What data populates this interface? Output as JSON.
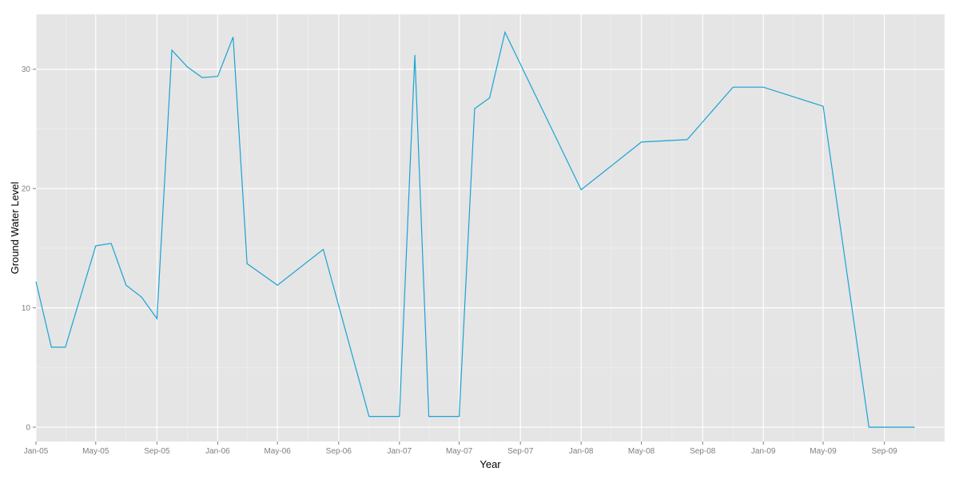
{
  "colors": {
    "panel_background": "#e5e5e5",
    "major_grid": "#ffffff",
    "minor_grid": "#f0f0f0",
    "series_line": "#1aa3d4",
    "tick_text": "#7f7f7f",
    "tick_mark": "#7f7f7f"
  },
  "chart_data": {
    "type": "line",
    "title": "",
    "xlabel": "Year",
    "ylabel": "Ground Water Level",
    "grid": true,
    "legend": "none",
    "xlim": [
      "2005-01-01",
      "2009-12-31"
    ],
    "ylim": [
      -1.2,
      34.6
    ],
    "x_ticks": [
      {
        "date": "2005-01-01",
        "label": "Jan-05"
      },
      {
        "date": "2005-05-01",
        "label": "May-05"
      },
      {
        "date": "2005-09-01",
        "label": "Sep-05"
      },
      {
        "date": "2006-01-01",
        "label": "Jan-06"
      },
      {
        "date": "2006-05-01",
        "label": "May-06"
      },
      {
        "date": "2006-09-01",
        "label": "Sep-06"
      },
      {
        "date": "2007-01-01",
        "label": "Jan-07"
      },
      {
        "date": "2007-05-01",
        "label": "May-07"
      },
      {
        "date": "2007-09-01",
        "label": "Sep-07"
      },
      {
        "date": "2008-01-01",
        "label": "Jan-08"
      },
      {
        "date": "2008-05-01",
        "label": "May-08"
      },
      {
        "date": "2008-09-01",
        "label": "Sep-08"
      },
      {
        "date": "2009-01-01",
        "label": "Jan-09"
      },
      {
        "date": "2009-05-01",
        "label": "May-09"
      },
      {
        "date": "2009-09-01",
        "label": "Sep-09"
      }
    ],
    "y_ticks": [
      {
        "value": 0,
        "label": "0"
      },
      {
        "value": 10,
        "label": "10"
      },
      {
        "value": 20,
        "label": "20"
      },
      {
        "value": 30,
        "label": "30"
      }
    ],
    "series": [
      {
        "x": [
          "2005-01-01",
          "2005-02-01",
          "2005-03-01",
          "2005-05-01",
          "2005-06-01",
          "2005-07-01",
          "2005-08-01",
          "2005-09-01",
          "2005-10-01",
          "2005-11-01",
          "2005-12-01",
          "2006-01-01",
          "2006-02-01",
          "2006-03-01",
          "2006-05-01",
          "2006-08-01",
          "2006-11-01",
          "2007-01-01",
          "2007-02-01",
          "2007-03-01",
          "2007-05-01",
          "2007-06-01",
          "2007-07-01",
          "2007-08-01",
          "2008-01-01",
          "2008-05-01",
          "2008-08-01",
          "2008-11-01",
          "2009-01-01",
          "2009-05-01",
          "2009-08-01",
          "2009-11-01"
        ],
        "y": [
          12.2,
          6.7,
          6.7,
          15.2,
          15.4,
          11.9,
          10.9,
          9.1,
          31.6,
          30.2,
          29.3,
          29.4,
          32.7,
          13.7,
          11.9,
          14.9,
          0.9,
          0.9,
          31.2,
          0.9,
          0.9,
          26.7,
          27.6,
          33.1,
          19.9,
          23.9,
          24.1,
          28.5,
          28.5,
          26.9,
          0.0,
          0.0
        ]
      }
    ]
  }
}
